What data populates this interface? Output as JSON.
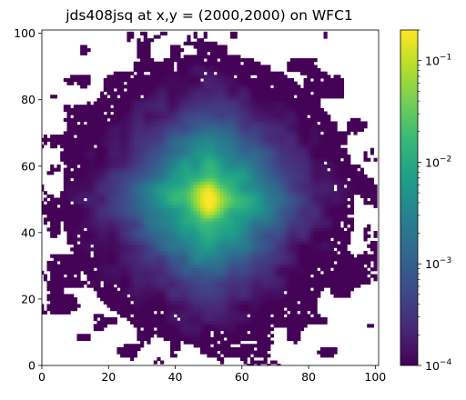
{
  "chart_data": {
    "type": "heatmap",
    "title": "jds408jsq at x,y = (2000,2000) on WFC1",
    "xlabel": "",
    "ylabel": "",
    "xlim": [
      0,
      101
    ],
    "ylim": [
      0,
      101
    ],
    "x_ticks": [
      {
        "value": 0,
        "label": "0"
      },
      {
        "value": 20,
        "label": "20"
      },
      {
        "value": 40,
        "label": "40"
      },
      {
        "value": 60,
        "label": "60"
      },
      {
        "value": 80,
        "label": "80"
      },
      {
        "value": 100,
        "label": "100"
      }
    ],
    "y_ticks": [
      {
        "value": 0,
        "label": "0"
      },
      {
        "value": 20,
        "label": "20"
      },
      {
        "value": 40,
        "label": "40"
      },
      {
        "value": 60,
        "label": "60"
      },
      {
        "value": 80,
        "label": "80"
      },
      {
        "value": 100,
        "label": "100"
      }
    ],
    "grid": false,
    "colormap": "viridis",
    "color_scale": "log",
    "colorbar": {
      "position": "right",
      "range": [
        0.0001,
        0.2
      ],
      "ticks": [
        {
          "value": 0.0001,
          "base": "10",
          "exp": "−4"
        },
        {
          "value": 0.001,
          "base": "10",
          "exp": "−3"
        },
        {
          "value": 0.01,
          "base": "10",
          "exp": "−2"
        },
        {
          "value": 0.1,
          "base": "10",
          "exp": "−1"
        }
      ]
    },
    "source": {
      "center": [
        50,
        50
      ],
      "peak_value": 0.2,
      "background_value": 0.0001
    },
    "masked_color": "#ffffff",
    "colors": {
      "viridis": [
        "#440154",
        "#482878",
        "#3e4a89",
        "#31688e",
        "#26828e",
        "#1f9e89",
        "#35b779",
        "#6ece58",
        "#b5de2b",
        "#fde725"
      ]
    }
  }
}
